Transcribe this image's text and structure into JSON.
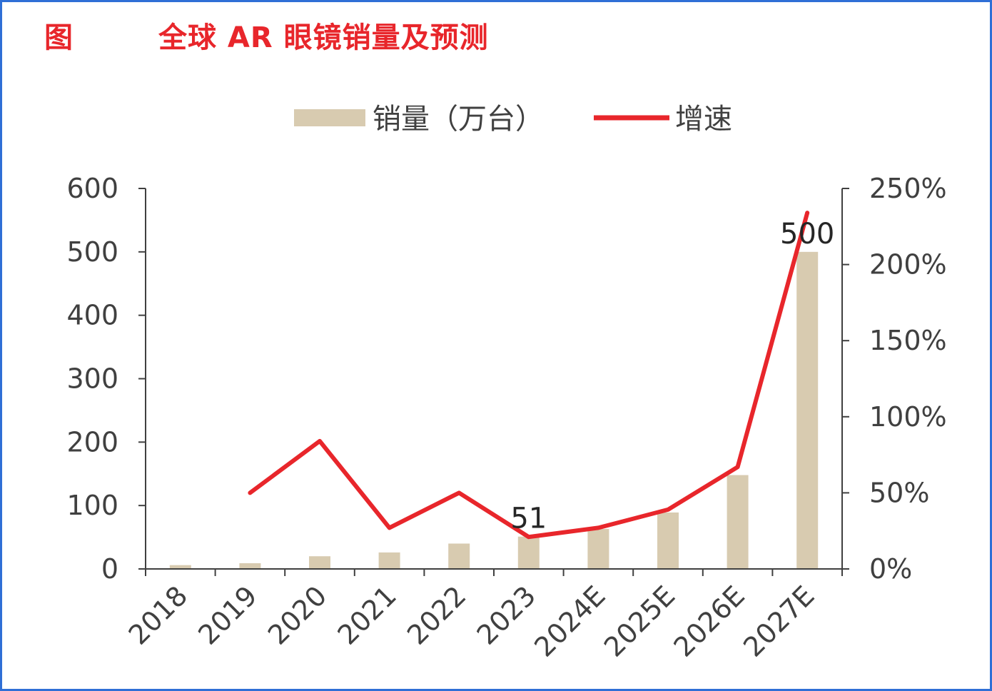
{
  "figure": {
    "label": "图",
    "title": "全球 AR 眼镜销量及预测"
  },
  "colors": {
    "bar": "#d8cbb0",
    "line": "#e8262b",
    "axis": "#404040",
    "title": "#e8262b",
    "frame": "#2f6fd6"
  },
  "chart_data": {
    "type": "bar",
    "title": "全球 AR 眼镜销量及预测",
    "categories": [
      "2018",
      "2019",
      "2020",
      "2021",
      "2022",
      "2023",
      "2024E",
      "2025E",
      "2026E",
      "2027E"
    ],
    "series": [
      {
        "name": "销量（万台）",
        "type": "bar",
        "axis": "left",
        "values": [
          6,
          9,
          20,
          26,
          40,
          51,
          63,
          89,
          148,
          500
        ]
      },
      {
        "name": "增速",
        "type": "line",
        "axis": "right",
        "values": [
          null,
          50,
          84,
          27,
          50,
          21,
          27,
          39,
          67,
          234
        ]
      }
    ],
    "y_left": {
      "ylim": [
        0,
        600
      ],
      "ticks": [
        "0",
        "100",
        "200",
        "300",
        "400",
        "500",
        "600"
      ]
    },
    "y_right": {
      "ylim": [
        0,
        250
      ],
      "ticks": [
        "0%",
        "50%",
        "100%",
        "150%",
        "200%",
        "250%"
      ]
    },
    "data_labels": [
      {
        "category": "2023",
        "text": "51"
      },
      {
        "category": "2027E",
        "text": "500"
      }
    ],
    "legend": {
      "position": "top",
      "entries": [
        "销量（万台）",
        "增速"
      ]
    },
    "grid": false
  }
}
